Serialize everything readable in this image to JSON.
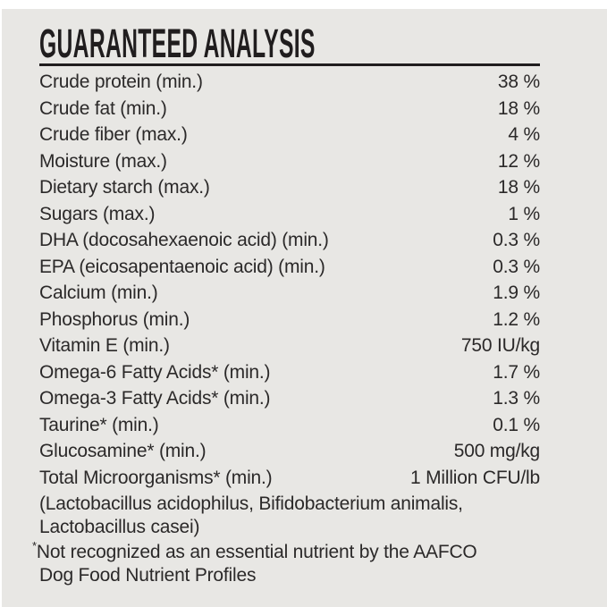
{
  "label": {
    "title": "GUARANTEED ANALYSIS",
    "rows": [
      {
        "nutrient": "Crude protein (min.)",
        "value": "38 %"
      },
      {
        "nutrient": "Crude fat (min.)",
        "value": "18 %"
      },
      {
        "nutrient": "Crude fiber (max.)",
        "value": "4 %"
      },
      {
        "nutrient": "Moisture (max.)",
        "value": "12 %"
      },
      {
        "nutrient": "Dietary starch (max.)",
        "value": "18 %"
      },
      {
        "nutrient": "Sugars (max.)",
        "value": "1 %"
      },
      {
        "nutrient": "DHA (docosahexaenoic acid) (min.)",
        "value": "0.3 %"
      },
      {
        "nutrient": "EPA (eicosapentaenoic acid) (min.)",
        "value": "0.3 %"
      },
      {
        "nutrient": "Calcium (min.)",
        "value": "1.9 %"
      },
      {
        "nutrient": "Phosphorus (min.)",
        "value": "1.2 %"
      },
      {
        "nutrient": "Vitamin E (min.)",
        "value": "750 IU/kg"
      },
      {
        "nutrient": "Omega-6 Fatty Acids* (min.)",
        "value": "1.7 %"
      },
      {
        "nutrient": "Omega-3 Fatty Acids* (min.)",
        "value": "1.3 %"
      },
      {
        "nutrient": "Taurine* (min.)",
        "value": "0.1 %"
      },
      {
        "nutrient": "Glucosamine* (min.)",
        "value": "500 mg/kg"
      },
      {
        "nutrient": "Total Microorganisms* (min.)",
        "value": "1 Million CFU/lb"
      }
    ],
    "species_note": {
      "line1": "(Lactobacillus acidophilus, Bifidobacterium animalis,",
      "line2": "Lactobacillus casei)"
    },
    "footnote": {
      "marker": "*",
      "line1": "Not recognized as an essential nutrient by the AAFCO",
      "line2": "Dog Food Nutrient Profiles"
    },
    "colors": {
      "page": "#ffffff",
      "panel": "#e8e7e4",
      "text": "#2b2929",
      "heading": "#201d1e"
    }
  }
}
